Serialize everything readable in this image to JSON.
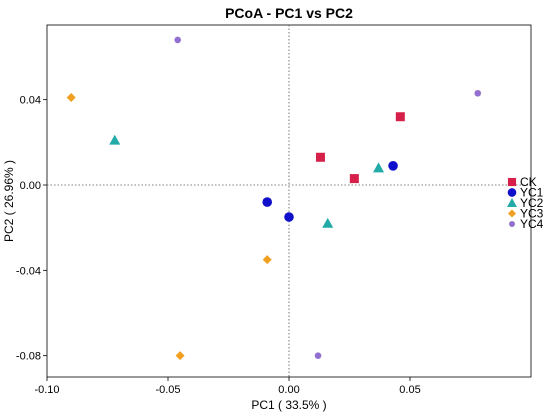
{
  "chart_data": {
    "type": "scatter",
    "title": "PCoA - PC1 vs PC2",
    "xlabel": "PC1 ( 33.5% )",
    "ylabel": "PC2 ( 26.96% )",
    "xlim": [
      -0.1,
      0.1
    ],
    "ylim": [
      -0.09,
      0.075
    ],
    "xticks": [
      -0.1,
      -0.05,
      0.0,
      0.05
    ],
    "xtick_labels": [
      "-0.10",
      "-0.05",
      "0.00",
      "0.05"
    ],
    "yticks": [
      0.04,
      0.0,
      -0.04,
      -0.08
    ],
    "ytick_labels": [
      "0.04",
      "0.00",
      "-0.04",
      "-0.08"
    ],
    "reference_lines": {
      "x": 0,
      "y": 0,
      "style": "dotted"
    },
    "grid": false,
    "legend": "right",
    "series": [
      {
        "name": "CK",
        "marker": "square",
        "color": "#d6204a",
        "points": [
          [
            0.013,
            0.013
          ],
          [
            0.027,
            0.003
          ],
          [
            0.046,
            0.032
          ]
        ]
      },
      {
        "name": "YC1",
        "marker": "circle",
        "color": "#1010cc",
        "points": [
          [
            -0.009,
            -0.008
          ],
          [
            0.0,
            -0.015
          ],
          [
            0.043,
            0.009
          ]
        ]
      },
      {
        "name": "YC2",
        "marker": "triangle",
        "color": "#22aaa6",
        "points": [
          [
            -0.072,
            0.021
          ],
          [
            0.016,
            -0.018
          ],
          [
            0.037,
            0.008
          ]
        ]
      },
      {
        "name": "YC3",
        "marker": "diamond",
        "color": "#f0a020",
        "points": [
          [
            -0.09,
            0.041
          ],
          [
            -0.009,
            -0.035
          ],
          [
            -0.045,
            -0.08
          ]
        ]
      },
      {
        "name": "YC4",
        "marker": "dot",
        "color": "#9370cf",
        "points": [
          [
            -0.046,
            0.068
          ],
          [
            0.078,
            0.043
          ],
          [
            0.012,
            -0.08
          ]
        ]
      }
    ]
  }
}
